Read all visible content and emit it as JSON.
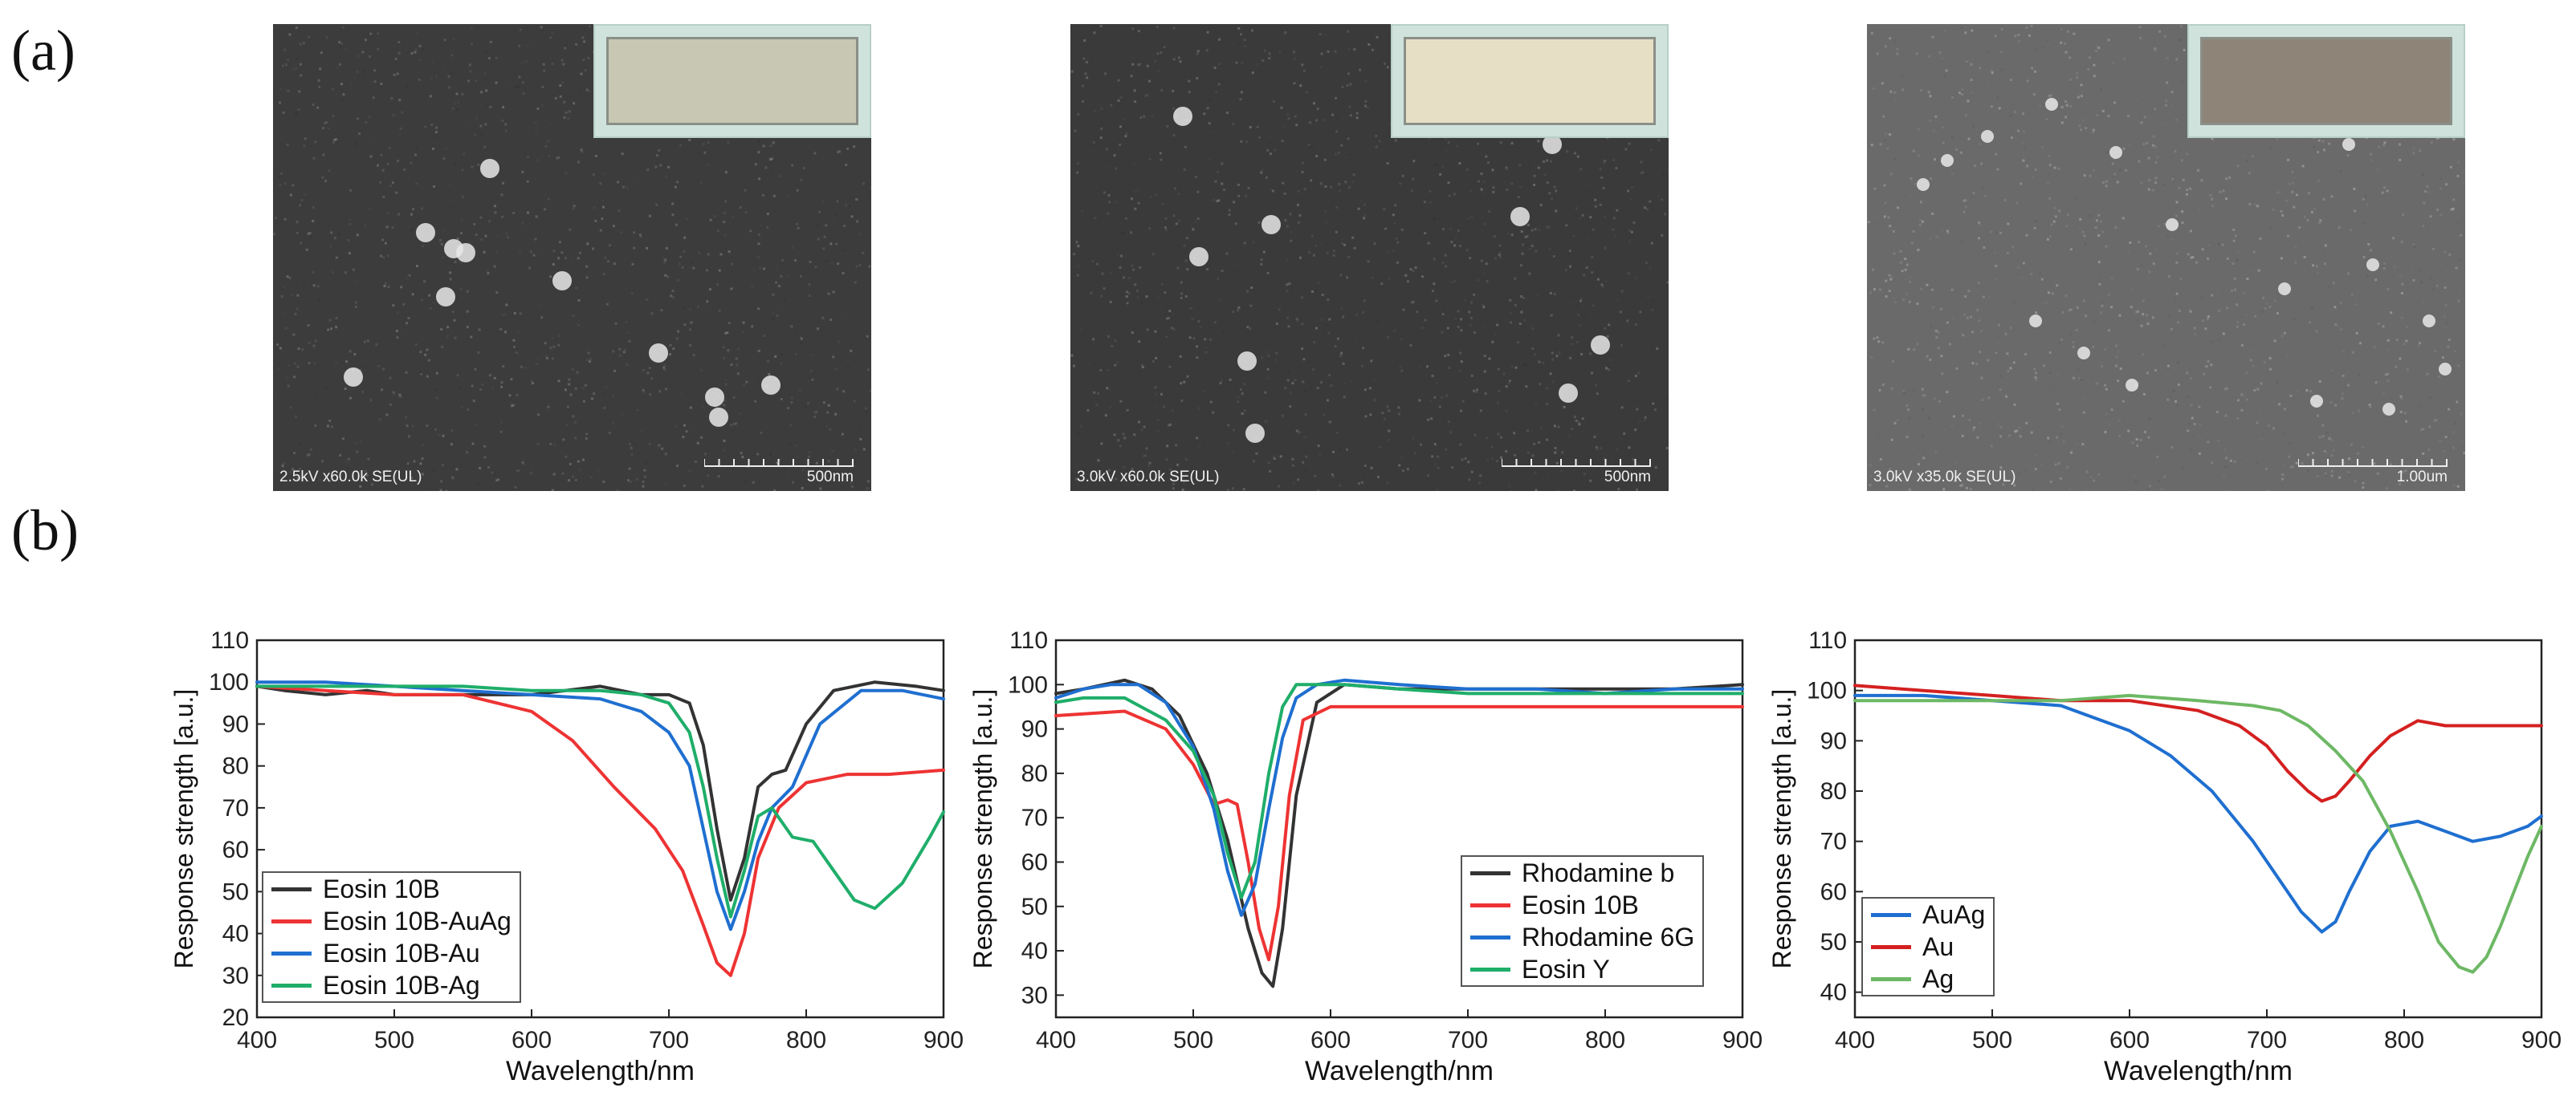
{
  "panels": {
    "a_label": "(a)",
    "b_label": "(b)"
  },
  "sem_images": [
    {
      "info": "2.5kV x60.0k SE(UL)",
      "scale": "500nm",
      "background": "#3c3c3c",
      "inset_color": "#c8c7b4"
    },
    {
      "info": "3.0kV x60.0k SE(UL)",
      "scale": "500nm",
      "background": "#3a3a3a",
      "inset_color": "#e6dfc6"
    },
    {
      "info": "3.0kV x35.0k SE(UL)",
      "scale": "1.00um",
      "background": "#6a6a6a",
      "inset_color": "#8e8578"
    }
  ],
  "chart_data": [
    {
      "type": "line",
      "title": "",
      "xlabel": "Wavelength/nm",
      "ylabel": "Response strength [a.u.]",
      "xlim": [
        400,
        900
      ],
      "ylim": [
        20,
        110
      ],
      "xticks": [
        400,
        500,
        600,
        700,
        800,
        900
      ],
      "yticks": [
        20,
        30,
        40,
        50,
        60,
        70,
        80,
        90,
        100,
        110
      ],
      "legend_position": "bottom-left",
      "series": [
        {
          "name": "Eosin 10B",
          "color": "#333333",
          "x": [
            400,
            420,
            450,
            480,
            500,
            550,
            600,
            650,
            680,
            700,
            715,
            725,
            735,
            745,
            755,
            765,
            775,
            785,
            800,
            820,
            850,
            880,
            900
          ],
          "y": [
            99,
            98,
            97,
            98,
            97,
            97,
            97,
            99,
            97,
            97,
            95,
            85,
            65,
            48,
            58,
            75,
            78,
            79,
            90,
            98,
            100,
            99,
            98
          ]
        },
        {
          "name": "Eosin 10B-AuAg",
          "color": "#ee3333",
          "x": [
            400,
            450,
            500,
            550,
            600,
            630,
            660,
            690,
            710,
            725,
            735,
            745,
            755,
            765,
            780,
            800,
            830,
            860,
            900
          ],
          "y": [
            99,
            98,
            97,
            97,
            93,
            86,
            75,
            65,
            55,
            42,
            33,
            30,
            40,
            58,
            70,
            76,
            78,
            78,
            79
          ]
        },
        {
          "name": "Eosin 10B-Au",
          "color": "#1f6fd0",
          "x": [
            400,
            450,
            500,
            550,
            600,
            650,
            680,
            700,
            715,
            725,
            735,
            745,
            755,
            765,
            775,
            790,
            810,
            840,
            870,
            900
          ],
          "y": [
            100,
            100,
            99,
            98,
            97,
            96,
            93,
            88,
            80,
            65,
            50,
            41,
            50,
            62,
            70,
            75,
            90,
            98,
            98,
            96
          ]
        },
        {
          "name": "Eosin 10B-Ag",
          "color": "#1fae6a",
          "x": [
            400,
            450,
            500,
            550,
            600,
            650,
            680,
            700,
            715,
            725,
            735,
            745,
            755,
            765,
            775,
            790,
            805,
            820,
            835,
            850,
            870,
            890,
            900
          ],
          "y": [
            99,
            99,
            99,
            99,
            98,
            98,
            97,
            95,
            88,
            75,
            58,
            44,
            55,
            68,
            70,
            63,
            62,
            55,
            48,
            46,
            52,
            63,
            69
          ]
        }
      ]
    },
    {
      "type": "line",
      "title": "",
      "xlabel": "Wavelength/nm",
      "ylabel": "Response strength [a.u.]",
      "xlim": [
        400,
        900
      ],
      "ylim": [
        25,
        110
      ],
      "xticks": [
        400,
        500,
        600,
        700,
        800,
        900
      ],
      "yticks": [
        30,
        40,
        50,
        60,
        70,
        80,
        90,
        100,
        110
      ],
      "legend_position": "bottom-right",
      "series": [
        {
          "name": "Rhodamine b",
          "color": "#333333",
          "x": [
            400,
            420,
            450,
            470,
            490,
            510,
            525,
            540,
            550,
            558,
            565,
            575,
            590,
            610,
            650,
            700,
            750,
            800,
            850,
            900
          ],
          "y": [
            98,
            99,
            101,
            99,
            93,
            80,
            65,
            45,
            35,
            32,
            45,
            75,
            96,
            100,
            99,
            99,
            99,
            99,
            99,
            100
          ]
        },
        {
          "name": "Eosin 10B",
          "color": "#ee3333",
          "x": [
            400,
            450,
            480,
            500,
            515,
            525,
            532,
            540,
            548,
            555,
            562,
            570,
            580,
            600,
            650,
            700,
            750,
            800,
            850,
            900
          ],
          "y": [
            93,
            94,
            90,
            82,
            73,
            74,
            73,
            60,
            45,
            38,
            50,
            75,
            92,
            95,
            95,
            95,
            95,
            95,
            95,
            95
          ]
        },
        {
          "name": "Rhodamine 6G",
          "color": "#1f6fd0",
          "x": [
            400,
            420,
            440,
            460,
            480,
            500,
            515,
            525,
            535,
            545,
            555,
            565,
            575,
            590,
            610,
            650,
            700,
            750,
            800,
            850,
            900
          ],
          "y": [
            97,
            99,
            100,
            100,
            96,
            86,
            72,
            58,
            48,
            55,
            72,
            88,
            97,
            100,
            101,
            100,
            99,
            99,
            98,
            99,
            99
          ]
        },
        {
          "name": "Eosin Y",
          "color": "#1fae6a",
          "x": [
            400,
            420,
            450,
            480,
            500,
            515,
            525,
            535,
            545,
            555,
            565,
            575,
            590,
            610,
            650,
            700,
            750,
            800,
            850,
            900
          ],
          "y": [
            96,
            97,
            97,
            92,
            85,
            75,
            62,
            52,
            60,
            80,
            95,
            100,
            100,
            100,
            99,
            98,
            98,
            98,
            98,
            98
          ]
        }
      ]
    },
    {
      "type": "line",
      "title": "",
      "xlabel": "Wavelength/nm",
      "ylabel": "Response strength [a.u.]",
      "xlim": [
        400,
        900
      ],
      "ylim": [
        35,
        110
      ],
      "xticks": [
        400,
        500,
        600,
        700,
        800,
        900
      ],
      "yticks": [
        40,
        50,
        60,
        70,
        80,
        90,
        100,
        110
      ],
      "legend_position": "bottom-left",
      "series": [
        {
          "name": "AuAg",
          "color": "#1f6fd0",
          "x": [
            400,
            450,
            500,
            550,
            600,
            630,
            660,
            690,
            710,
            725,
            740,
            750,
            760,
            775,
            790,
            810,
            830,
            850,
            870,
            890,
            900
          ],
          "y": [
            99,
            99,
            98,
            97,
            92,
            87,
            80,
            70,
            62,
            56,
            52,
            54,
            60,
            68,
            73,
            74,
            72,
            70,
            71,
            73,
            75
          ]
        },
        {
          "name": "Au",
          "color": "#d42020",
          "x": [
            400,
            450,
            500,
            550,
            600,
            650,
            680,
            700,
            715,
            730,
            740,
            750,
            760,
            775,
            790,
            810,
            830,
            860,
            900
          ],
          "y": [
            101,
            100,
            99,
            98,
            98,
            96,
            93,
            89,
            84,
            80,
            78,
            79,
            82,
            87,
            91,
            94,
            93,
            93,
            93
          ]
        },
        {
          "name": "Ag",
          "color": "#6db865",
          "x": [
            400,
            450,
            500,
            550,
            600,
            650,
            690,
            710,
            730,
            750,
            770,
            790,
            810,
            825,
            840,
            850,
            860,
            870,
            880,
            890,
            900
          ],
          "y": [
            98,
            98,
            98,
            98,
            99,
            98,
            97,
            96,
            93,
            88,
            82,
            72,
            60,
            50,
            45,
            44,
            47,
            53,
            60,
            67,
            73
          ]
        }
      ]
    }
  ]
}
